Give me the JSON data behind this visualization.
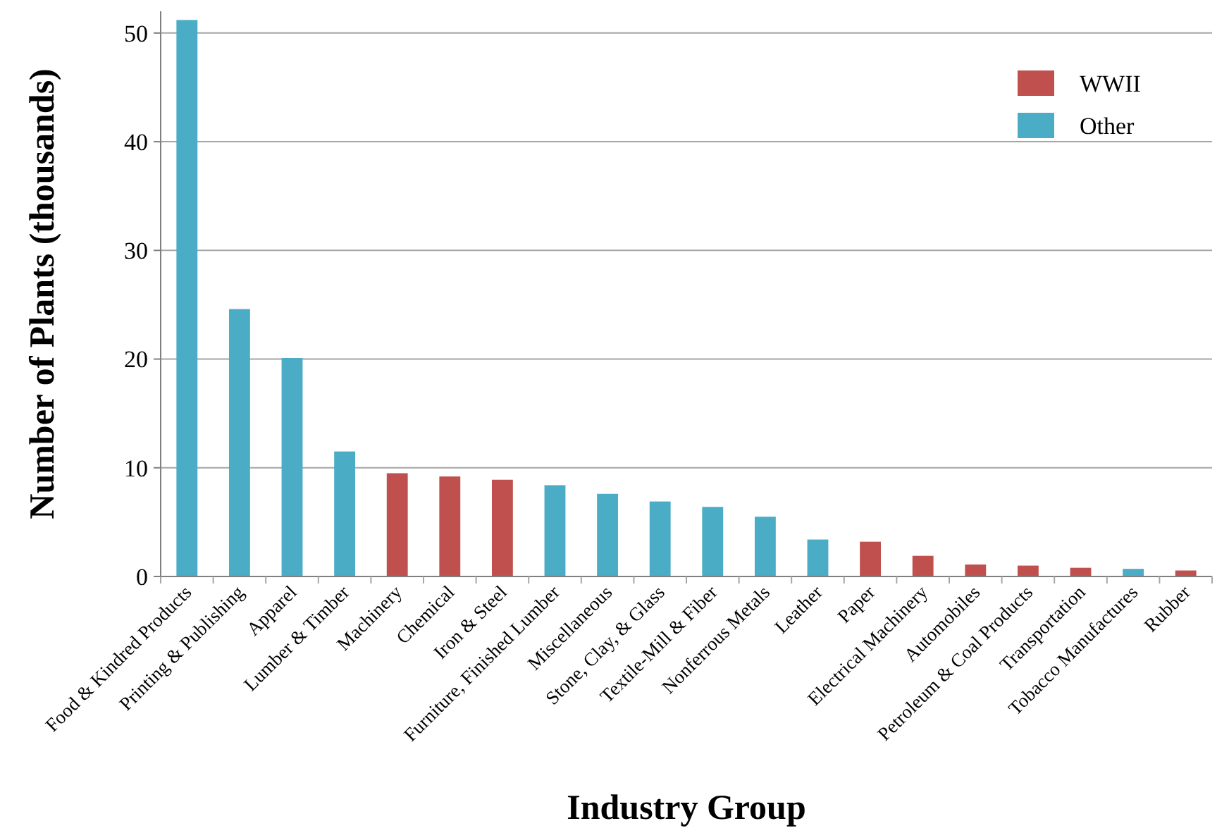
{
  "chart_data": {
    "type": "bar",
    "xlabel": "Industry Group",
    "ylabel": "Number of Plants (thousands)",
    "categories": [
      "Food & Kindred Products",
      "Printing & Publishing",
      "Apparel",
      "Lumber & Timber",
      "Machinery",
      "Chemical",
      "Iron & Steel",
      "Furniture, Finished Lumber",
      "Miscellaneous",
      "Stone, Clay, & Glass",
      "Textile-Mill & Fiber",
      "Nonferrous Metals",
      "Leather",
      "Paper",
      "Electrical Machinery",
      "Automobiles",
      "Petroleum & Coal Products",
      "Transportation",
      "Tobacco Manufactures",
      "Rubber"
    ],
    "series": [
      {
        "name": "WWII",
        "color": "#c0504d",
        "values": [
          null,
          null,
          null,
          null,
          9.5,
          9.2,
          8.9,
          null,
          null,
          null,
          null,
          null,
          null,
          3.2,
          1.9,
          1.1,
          1.0,
          0.8,
          null,
          0.55
        ]
      },
      {
        "name": "Other",
        "color": "#4bacc6",
        "values": [
          51.2,
          24.6,
          20.1,
          11.5,
          null,
          null,
          null,
          8.4,
          7.6,
          6.9,
          6.4,
          5.5,
          3.4,
          null,
          null,
          null,
          null,
          null,
          0.7,
          null
        ]
      }
    ],
    "stacked": true,
    "ylim": [
      0,
      52
    ],
    "yticks": [
      0,
      10,
      20,
      30,
      40,
      50
    ],
    "grid": "y",
    "legend": "top right"
  }
}
